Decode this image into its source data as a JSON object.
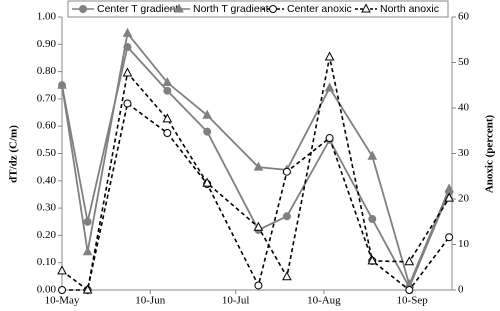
{
  "chart_data": {
    "type": "line",
    "x": [
      130,
      139,
      153,
      167,
      181,
      199,
      209,
      224,
      239,
      252,
      266
    ],
    "xlim": [
      130,
      267
    ],
    "xticks": [
      {
        "value": 130,
        "label": "10-May"
      },
      {
        "value": 161,
        "label": "10-Jun"
      },
      {
        "value": 191,
        "label": "10-Jul"
      },
      {
        "value": 222,
        "label": "10-Aug"
      },
      {
        "value": 253,
        "label": "10-Sep"
      }
    ],
    "ylabel": "dT/dz (C/m)",
    "y2label": "Anoxic (percent)",
    "ylim": [
      0,
      1
    ],
    "yticks": [
      {
        "value": 0,
        "label": "0.00"
      },
      {
        "value": 0.1,
        "label": "0.10"
      },
      {
        "value": 0.2,
        "label": "0.20"
      },
      {
        "value": 0.3,
        "label": "0.30"
      },
      {
        "value": 0.4,
        "label": "0.40"
      },
      {
        "value": 0.5,
        "label": "0.50"
      },
      {
        "value": 0.6,
        "label": "0.60"
      },
      {
        "value": 0.7,
        "label": "0.70"
      },
      {
        "value": 0.8,
        "label": "0.80"
      },
      {
        "value": 0.9,
        "label": "0.90"
      },
      {
        "value": 1,
        "label": "1.00"
      }
    ],
    "y2lim": [
      0,
      60
    ],
    "y2ticks": [
      0,
      10,
      20,
      30,
      40,
      50,
      60
    ],
    "grid": false,
    "legend": "top",
    "series": [
      {
        "name": "Center T gradient",
        "color": "#808080",
        "marker": "circle",
        "dashed": false,
        "values": [
          0.75,
          0.25,
          0.89,
          0.73,
          0.58,
          0.22,
          0.27,
          0.55,
          0.26,
          0.01,
          0.36
        ]
      },
      {
        "name": "North T gradient",
        "color": "#808080",
        "marker": "triangle",
        "dashed": false,
        "values": [
          0.75,
          0.14,
          0.94,
          0.76,
          0.64,
          0.45,
          0.44,
          0.74,
          0.49,
          0.02,
          0.37
        ]
      },
      {
        "name": "Center anoxic",
        "color": "#000000",
        "marker": "circle",
        "dashed": true,
        "axis": "y2",
        "values": [
          0,
          0,
          41,
          34.5,
          23.3,
          1,
          26,
          33.4,
          6.4,
          0,
          11.6
        ]
      },
      {
        "name": "North anoxic",
        "color": "#000000",
        "marker": "triangle",
        "dashed": true,
        "axis": "y2",
        "values": [
          4.2,
          0,
          47.7,
          37.6,
          23.5,
          13.8,
          2.9,
          51.2,
          6.4,
          6.2,
          20.2
        ]
      }
    ]
  }
}
